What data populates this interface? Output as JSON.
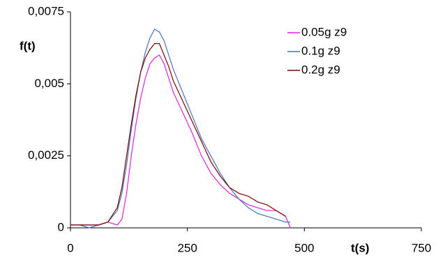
{
  "chart_data": {
    "type": "line",
    "x_label": "t(s)",
    "y_label": "f(t)",
    "x": [
      0,
      20,
      40,
      60,
      80,
      100,
      110,
      120,
      130,
      140,
      150,
      160,
      170,
      180,
      190,
      200,
      210,
      220,
      240,
      260,
      280,
      300,
      320,
      340,
      360,
      380,
      400,
      420,
      440,
      460,
      470
    ],
    "series": [
      {
        "name": "0.05g z9",
        "color": "#e020e0",
        "values": [
          0.0001,
          0.0001,
          0.0001,
          0.0001,
          0.0002,
          0.0001,
          0.0003,
          0.0012,
          0.0025,
          0.0036,
          0.0045,
          0.0052,
          0.0057,
          0.0059,
          0.006,
          0.0057,
          0.0052,
          0.0047,
          0.004,
          0.0033,
          0.0025,
          0.0019,
          0.0015,
          0.0012,
          0.001,
          0.0008,
          0.0007,
          0.0006,
          0.0006,
          0.0004,
          0
        ]
      },
      {
        "name": "0.1g z9",
        "color": "#4472c4",
        "values": [
          0.0001,
          0.0001,
          0,
          0.0001,
          0.0002,
          0.0006,
          0.0012,
          0.0022,
          0.0034,
          0.0045,
          0.0054,
          0.0061,
          0.0066,
          0.0069,
          0.0068,
          0.0065,
          0.006,
          0.0055,
          0.0047,
          0.0039,
          0.0031,
          0.0025,
          0.0019,
          0.0014,
          0.001,
          0.0007,
          0.0005,
          0.0004,
          0.0003,
          0.0002,
          0.0002
        ]
      },
      {
        "name": "0.2g z9",
        "color": "#800000",
        "values": [
          0.0001,
          0.0001,
          0.0001,
          0.0001,
          0.0002,
          0.0007,
          0.0014,
          0.0025,
          0.0036,
          0.0046,
          0.0054,
          0.0059,
          0.0062,
          0.0064,
          0.0064,
          0.006,
          0.0056,
          0.0051,
          0.0044,
          0.0037,
          0.003,
          0.0023,
          0.0018,
          0.0014,
          0.0012,
          0.0011,
          0.0009,
          0.0008,
          0.0006,
          0.0004,
          null
        ]
      }
    ],
    "xlim": [
      0,
      750
    ],
    "xticks": [
      0,
      250,
      500,
      750
    ],
    "ylim": [
      0,
      0.0075
    ],
    "yticks": [
      0,
      {
        "value": 0.0025,
        "label": "0,0025"
      },
      {
        "value": 0.005,
        "label": "0,005"
      },
      {
        "value": 0.0075,
        "label": "0,0075"
      }
    ],
    "grid": false,
    "legend": "top-right"
  }
}
